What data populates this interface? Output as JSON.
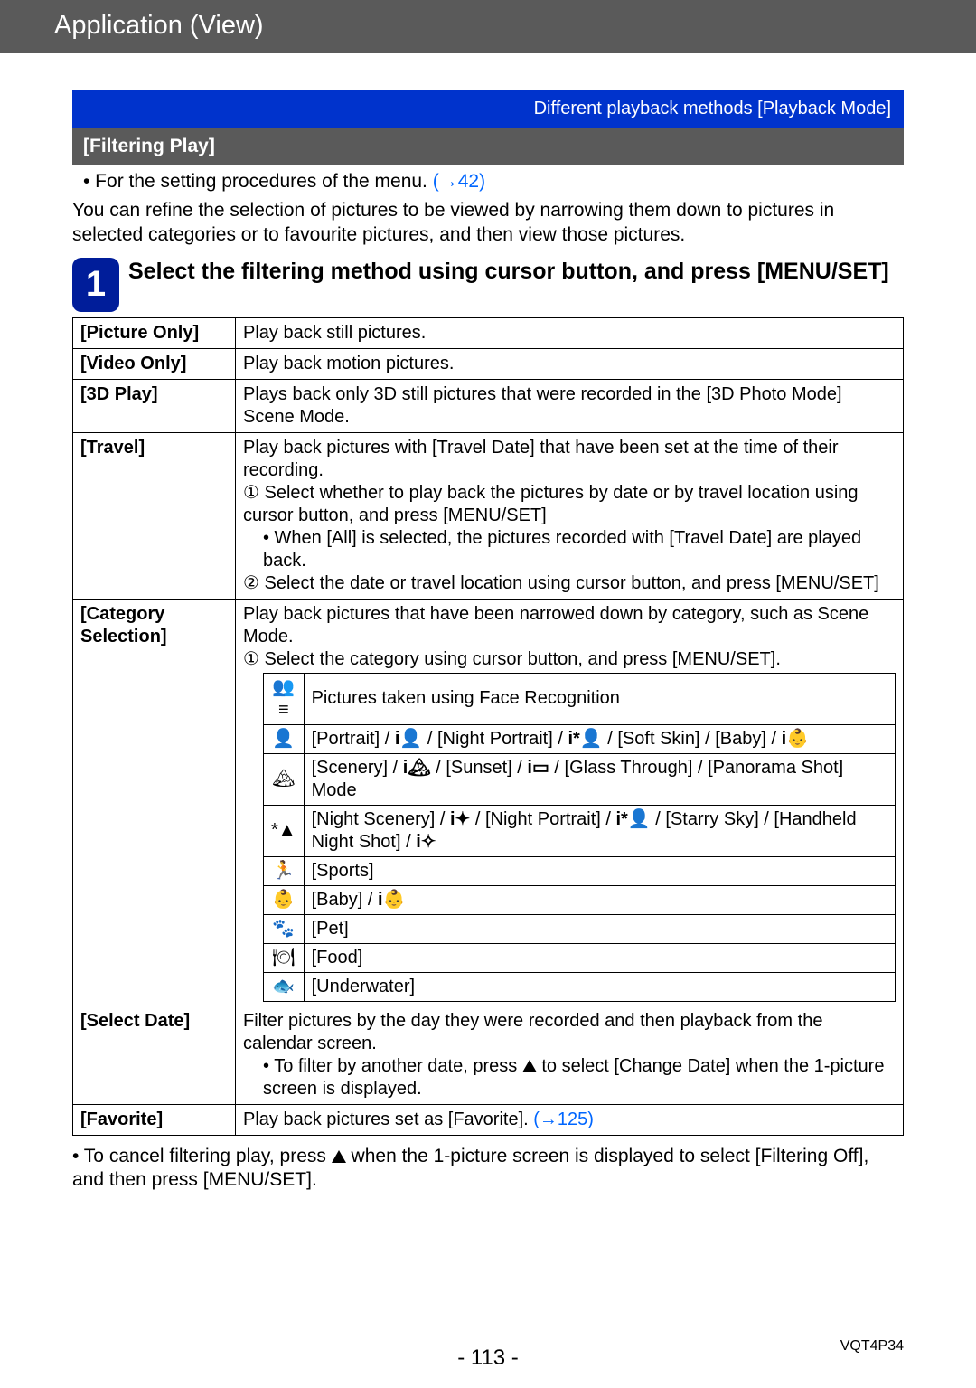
{
  "header": {
    "title": "Application (View)"
  },
  "bluebar": {
    "text": "Different playback methods  [Playback Mode]"
  },
  "graybar": {
    "title": "[Filtering Play]"
  },
  "intro": {
    "bullet_prefix": " • For the setting procedures of the menu. ",
    "bullet_link": "(→42)",
    "paragraph": "You can refine the selection of pictures to be viewed by narrowing them down to pictures in selected categories or to favourite pictures, and then view those pictures."
  },
  "step": {
    "num": "1",
    "text": "Select the filtering method using cursor button, and press [MENU/SET]"
  },
  "rows": {
    "picture_only": {
      "label": "[Picture Only]",
      "desc": "Play back still pictures."
    },
    "video_only": {
      "label": "[Video Only]",
      "desc": "Play back motion pictures."
    },
    "three_d": {
      "label": "[3D Play]",
      "desc": "Plays back only 3D still pictures that were recorded in the [3D Photo Mode] Scene Mode."
    },
    "travel": {
      "label": "[Travel]",
      "l1": "Play back pictures with [Travel Date] that have been set at the time of their recording.",
      "s1_num": "①",
      "s1": "Select whether to play back the pictures by date or by travel location using cursor button, and press [MENU/SET]",
      "s1_sub": "• When [All] is selected, the pictures recorded with [Travel Date] are played back.",
      "s2_num": "②",
      "s2": "Select the date or travel location using cursor button, and press [MENU/SET]"
    },
    "category": {
      "label": "[Category Selection]",
      "l1": "Play back pictures that have been narrowed down by category, such as Scene Mode.",
      "s1_num": "①",
      "s1": "Select the category using cursor button, and press [MENU/SET].",
      "items": [
        {
          "icon": "👥≡",
          "text": "Pictures taken using Face Recognition"
        },
        {
          "icon": "👤",
          "text_html": "[Portrait] / <b class='glyph'>i👤</b> / [Night Portrait] / <b class='glyph'>i*👤</b> / [Soft Skin] / [Baby] / <b class='glyph'>i👶</b>"
        },
        {
          "icon": "🏔",
          "text_html": "[Scenery] / <b class='glyph'>i🏔</b> / [Sunset] / <b class='glyph'>i▭</b> / [Glass Through] / [Panorama Shot] Mode"
        },
        {
          "icon": "*▲",
          "text_html": "[Night Scenery] / <b class='glyph'>i✦</b> / [Night Portrait] / <b class='glyph'>i*👤</b> / [Starry Sky] / [Handheld Night Shot] / <b class='glyph'>i✧</b>"
        },
        {
          "icon": "🏃",
          "text": "[Sports]"
        },
        {
          "icon": "👶",
          "text_html": "[Baby] / <b class='glyph'>i👶</b>"
        },
        {
          "icon": "🐾",
          "text": "[Pet]"
        },
        {
          "icon": "🍽",
          "text": "[Food]"
        },
        {
          "icon": "🐟",
          "text": "[Underwater]"
        }
      ]
    },
    "select_date": {
      "label": "[Select Date]",
      "l1": "Filter pictures by the day they were recorded and then playback from the calendar screen.",
      "sub_pre": " • To filter by another date, press ",
      "sub_post": " to select [Change Date] when the 1-picture screen is displayed."
    },
    "favorite": {
      "label": "[Favorite]",
      "desc": "Play back pictures set as [Favorite]. ",
      "link": "(→125)"
    }
  },
  "closing": {
    "pre": " • To cancel filtering play, press ",
    "post": " when the 1-picture screen is displayed to select [Filtering Off], and then press [MENU/SET]."
  },
  "footer": {
    "page": "- 113 -",
    "code": "VQT4P34"
  },
  "colors": {
    "topbar_bg": "#5a5a5a",
    "bluebar_bg": "#0033cc",
    "step_badge_bg": "#001d9a",
    "link": "#0066ff",
    "border": "#000000",
    "page_bg": "#ffffff"
  }
}
